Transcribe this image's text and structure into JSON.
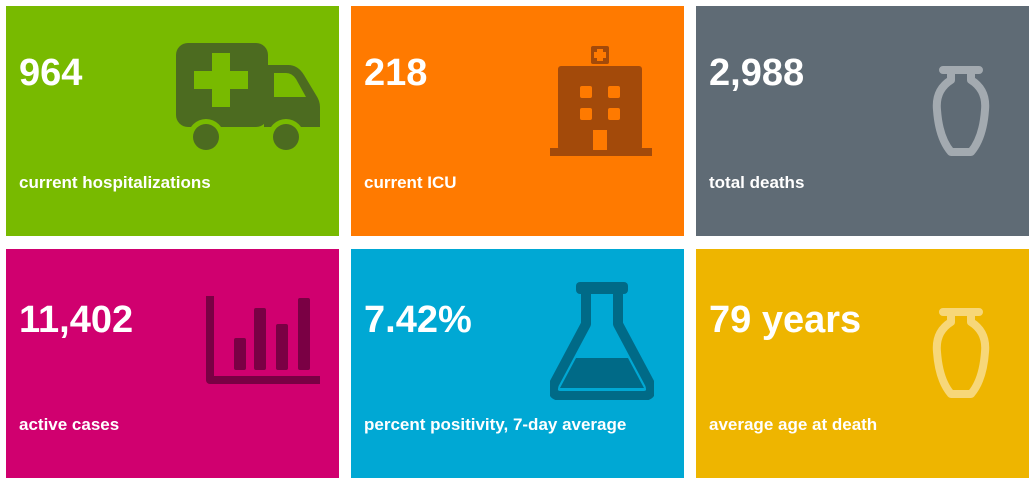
{
  "cards": [
    {
      "value": "964",
      "label": "current hospitalizations",
      "color": "#78BA00",
      "icon": "ambulance-icon"
    },
    {
      "value": "218",
      "label": "current ICU",
      "color": "#FF7A00",
      "icon": "hospital-building-icon"
    },
    {
      "value": "2,988",
      "label": "total deaths",
      "color": "#5F6B75",
      "icon": "urn-icon"
    },
    {
      "value": "11,402",
      "label": "active cases",
      "color": "#D0006F",
      "icon": "bar-chart-icon"
    },
    {
      "value": "7.42%",
      "label": "percent positivity, 7-day average",
      "color": "#00A8D4",
      "icon": "flask-icon"
    },
    {
      "value": "79 years",
      "label": "average age at death",
      "color": "#EEB500",
      "icon": "urn-icon"
    }
  ]
}
